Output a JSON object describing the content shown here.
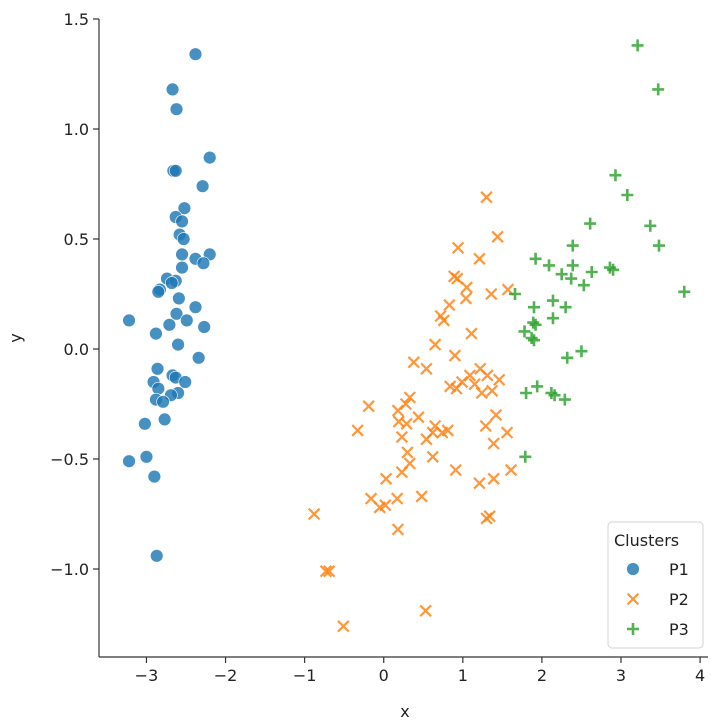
{
  "chart_data": {
    "type": "scatter",
    "xlabel": "x",
    "ylabel": "y",
    "xlim": [
      -3.6,
      4.1
    ],
    "ylim": [
      -1.4,
      1.5
    ],
    "x_ticks": [
      -3,
      -2,
      -1,
      0,
      1,
      2,
      3,
      4
    ],
    "x_tick_labels": [
      "−3",
      "−2",
      "−1",
      "0",
      "1",
      "2",
      "3",
      "4"
    ],
    "y_ticks": [
      -1.0,
      -0.5,
      0.0,
      0.5,
      1.0,
      1.5
    ],
    "y_tick_labels": [
      "−1.0",
      "−0.5",
      "0.0",
      "0.5",
      "1.0",
      "1.5"
    ],
    "grid": false,
    "legend": {
      "title": "Clusters",
      "placement": "lower-right"
    },
    "series": [
      {
        "name": "P1",
        "marker": "circle",
        "color": "#1f77b4",
        "points": [
          [
            -2.38,
            1.34
          ],
          [
            -2.67,
            1.18
          ],
          [
            -2.62,
            1.09
          ],
          [
            -2.2,
            0.87
          ],
          [
            -2.66,
            0.81
          ],
          [
            -2.63,
            0.81
          ],
          [
            -2.29,
            0.74
          ],
          [
            -2.52,
            0.64
          ],
          [
            -2.63,
            0.6
          ],
          [
            -2.55,
            0.58
          ],
          [
            -2.58,
            0.52
          ],
          [
            -2.53,
            0.5
          ],
          [
            -2.2,
            0.43
          ],
          [
            -2.55,
            0.43
          ],
          [
            -2.38,
            0.41
          ],
          [
            -2.28,
            0.39
          ],
          [
            -2.55,
            0.37
          ],
          [
            -2.74,
            0.32
          ],
          [
            -2.63,
            0.31
          ],
          [
            -2.68,
            0.3
          ],
          [
            -2.83,
            0.27
          ],
          [
            -2.85,
            0.26
          ],
          [
            -2.59,
            0.23
          ],
          [
            -2.38,
            0.19
          ],
          [
            -2.62,
            0.16
          ],
          [
            -2.49,
            0.13
          ],
          [
            -3.22,
            0.13
          ],
          [
            -2.71,
            0.11
          ],
          [
            -2.27,
            0.1
          ],
          [
            -2.88,
            0.07
          ],
          [
            -2.6,
            0.02
          ],
          [
            -2.34,
            -0.04
          ],
          [
            -2.86,
            -0.09
          ],
          [
            -2.67,
            -0.12
          ],
          [
            -2.63,
            -0.13
          ],
          [
            -2.91,
            -0.15
          ],
          [
            -2.51,
            -0.15
          ],
          [
            -2.85,
            -0.18
          ],
          [
            -2.6,
            -0.2
          ],
          [
            -2.69,
            -0.21
          ],
          [
            -2.88,
            -0.23
          ],
          [
            -2.79,
            -0.24
          ],
          [
            -2.77,
            -0.32
          ],
          [
            -3.02,
            -0.34
          ],
          [
            -3.0,
            -0.49
          ],
          [
            -3.22,
            -0.51
          ],
          [
            -2.9,
            -0.58
          ],
          [
            -2.87,
            -0.94
          ]
        ]
      },
      {
        "name": "P2",
        "marker": "x",
        "color": "#ff7f0e",
        "points": [
          [
            1.3,
            0.69
          ],
          [
            1.44,
            0.51
          ],
          [
            0.94,
            0.46
          ],
          [
            1.21,
            0.41
          ],
          [
            0.89,
            0.33
          ],
          [
            0.93,
            0.32
          ],
          [
            1.05,
            0.28
          ],
          [
            1.57,
            0.27
          ],
          [
            1.36,
            0.25
          ],
          [
            1.04,
            0.23
          ],
          [
            0.83,
            0.2
          ],
          [
            0.72,
            0.15
          ],
          [
            0.76,
            0.13
          ],
          [
            1.11,
            0.07
          ],
          [
            0.65,
            0.02
          ],
          [
            0.9,
            -0.03
          ],
          [
            0.38,
            -0.06
          ],
          [
            0.54,
            -0.09
          ],
          [
            1.22,
            -0.09
          ],
          [
            1.09,
            -0.12
          ],
          [
            1.31,
            -0.12
          ],
          [
            1.46,
            -0.14
          ],
          [
            0.99,
            -0.15
          ],
          [
            1.15,
            -0.16
          ],
          [
            0.84,
            -0.17
          ],
          [
            0.92,
            -0.18
          ],
          [
            1.37,
            -0.19
          ],
          [
            1.24,
            -0.2
          ],
          [
            0.33,
            -0.22
          ],
          [
            0.28,
            -0.25
          ],
          [
            -0.19,
            -0.26
          ],
          [
            0.18,
            -0.28
          ],
          [
            1.42,
            -0.3
          ],
          [
            0.44,
            -0.31
          ],
          [
            0.19,
            -0.33
          ],
          [
            0.29,
            -0.34
          ],
          [
            1.29,
            -0.35
          ],
          [
            0.65,
            -0.35
          ],
          [
            0.81,
            -0.37
          ],
          [
            -0.33,
            -0.37
          ],
          [
            0.62,
            -0.38
          ],
          [
            0.74,
            -0.38
          ],
          [
            1.56,
            -0.38
          ],
          [
            0.23,
            -0.4
          ],
          [
            0.54,
            -0.41
          ],
          [
            1.39,
            -0.43
          ],
          [
            0.3,
            -0.47
          ],
          [
            0.62,
            -0.49
          ],
          [
            0.33,
            -0.52
          ],
          [
            0.91,
            -0.55
          ],
          [
            1.61,
            -0.55
          ],
          [
            0.23,
            -0.56
          ],
          [
            1.39,
            -0.59
          ],
          [
            1.21,
            -0.61
          ],
          [
            0.03,
            -0.59
          ],
          [
            0.48,
            -0.67
          ],
          [
            -0.16,
            -0.68
          ],
          [
            0.17,
            -0.68
          ],
          [
            0.02,
            -0.71
          ],
          [
            -0.05,
            -0.72
          ],
          [
            -0.88,
            -0.75
          ],
          [
            1.34,
            -0.76
          ],
          [
            1.3,
            -0.77
          ],
          [
            0.18,
            -0.82
          ],
          [
            -0.73,
            -1.01
          ],
          [
            -0.69,
            -1.01
          ],
          [
            0.53,
            -1.19
          ],
          [
            -0.51,
            -1.26
          ]
        ]
      },
      {
        "name": "P3",
        "marker": "plus",
        "color": "#2ca02c",
        "points": [
          [
            3.21,
            1.38
          ],
          [
            3.47,
            1.18
          ],
          [
            2.93,
            0.79
          ],
          [
            3.08,
            0.7
          ],
          [
            2.61,
            0.57
          ],
          [
            3.37,
            0.56
          ],
          [
            2.39,
            0.47
          ],
          [
            3.48,
            0.47
          ],
          [
            1.92,
            0.41
          ],
          [
            2.09,
            0.38
          ],
          [
            2.39,
            0.38
          ],
          [
            2.63,
            0.35
          ],
          [
            2.86,
            0.37
          ],
          [
            2.9,
            0.36
          ],
          [
            2.25,
            0.34
          ],
          [
            2.37,
            0.32
          ],
          [
            2.53,
            0.29
          ],
          [
            1.66,
            0.25
          ],
          [
            3.8,
            0.26
          ],
          [
            2.14,
            0.22
          ],
          [
            1.9,
            0.19
          ],
          [
            2.3,
            0.19
          ],
          [
            2.14,
            0.14
          ],
          [
            1.89,
            0.12
          ],
          [
            1.92,
            0.11
          ],
          [
            1.78,
            0.08
          ],
          [
            1.87,
            0.05
          ],
          [
            1.9,
            0.04
          ],
          [
            2.5,
            -0.01
          ],
          [
            2.32,
            -0.04
          ],
          [
            1.94,
            -0.17
          ],
          [
            2.12,
            -0.2
          ],
          [
            1.8,
            -0.2
          ],
          [
            2.16,
            -0.21
          ],
          [
            2.29,
            -0.23
          ],
          [
            1.79,
            -0.49
          ]
        ]
      }
    ]
  }
}
